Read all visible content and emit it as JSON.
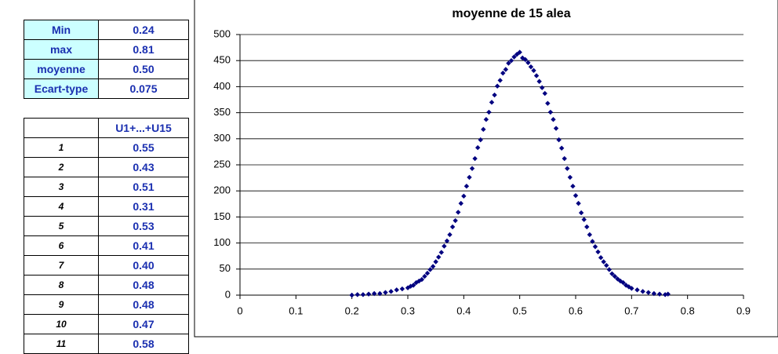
{
  "stats_table": {
    "rows": [
      [
        "Min",
        "0.24"
      ],
      [
        "max",
        "0.81"
      ],
      [
        "moyenne",
        "0.50"
      ],
      [
        "Ecart-type",
        "0.075"
      ]
    ]
  },
  "data_table": {
    "header": "U1+...+U15",
    "rows": [
      [
        "1",
        "0.55"
      ],
      [
        "2",
        "0.43"
      ],
      [
        "3",
        "0.51"
      ],
      [
        "4",
        "0.31"
      ],
      [
        "5",
        "0.53"
      ],
      [
        "6",
        "0.41"
      ],
      [
        "7",
        "0.40"
      ],
      [
        "8",
        "0.48"
      ],
      [
        "9",
        "0.48"
      ],
      [
        "10",
        "0.47"
      ],
      [
        "11",
        "0.58"
      ]
    ]
  },
  "chart_data": {
    "type": "scatter",
    "title": "moyenne de 15 alea",
    "xlim": [
      0,
      0.9
    ],
    "xticks": [
      0,
      0.1,
      0.2,
      0.3,
      0.4,
      0.5,
      0.6,
      0.7,
      0.8,
      0.9
    ],
    "ylim": [
      0,
      500
    ],
    "yticks": [
      0,
      50,
      100,
      150,
      200,
      250,
      300,
      350,
      400,
      450,
      500
    ],
    "grid": true,
    "series": [
      {
        "color": "#000080",
        "x": [
          0.2,
          0.21,
          0.22,
          0.23,
          0.24,
          0.25,
          0.26,
          0.27,
          0.28,
          0.29,
          0.3,
          0.305,
          0.31,
          0.315,
          0.32,
          0.325,
          0.33,
          0.335,
          0.34,
          0.345,
          0.35,
          0.355,
          0.36,
          0.365,
          0.37,
          0.375,
          0.38,
          0.385,
          0.39,
          0.395,
          0.4,
          0.405,
          0.41,
          0.415,
          0.42,
          0.425,
          0.43,
          0.435,
          0.44,
          0.445,
          0.45,
          0.455,
          0.46,
          0.465,
          0.47,
          0.475,
          0.48,
          0.485,
          0.49,
          0.495,
          0.5,
          0.505,
          0.51,
          0.515,
          0.52,
          0.525,
          0.53,
          0.535,
          0.54,
          0.545,
          0.55,
          0.555,
          0.56,
          0.565,
          0.57,
          0.575,
          0.58,
          0.585,
          0.59,
          0.595,
          0.6,
          0.605,
          0.61,
          0.615,
          0.62,
          0.625,
          0.63,
          0.635,
          0.64,
          0.645,
          0.65,
          0.655,
          0.66,
          0.665,
          0.67,
          0.675,
          0.68,
          0.685,
          0.69,
          0.695,
          0.7,
          0.71,
          0.72,
          0.73,
          0.74,
          0.75,
          0.76,
          0.765
        ],
        "values": [
          0,
          1,
          1,
          2,
          3,
          3,
          5,
          7,
          10,
          12,
          14,
          17,
          19,
          24,
          27,
          30,
          36,
          42,
          49,
          55,
          64,
          73,
          82,
          94,
          104,
          116,
          131,
          143,
          159,
          176,
          190,
          209,
          226,
          243,
          262,
          283,
          298,
          318,
          337,
          351,
          370,
          384,
          401,
          412,
          426,
          433,
          445,
          450,
          457,
          462,
          466,
          455,
          452,
          446,
          438,
          431,
          421,
          410,
          398,
          387,
          368,
          351,
          337,
          320,
          298,
          282,
          262,
          243,
          226,
          209,
          191,
          176,
          158,
          145,
          131,
          116,
          103,
          93,
          83,
          72,
          64,
          57,
          49,
          41,
          36,
          31,
          27,
          24,
          19,
          16,
          13,
          10,
          7,
          5,
          3,
          2,
          1,
          2
        ]
      }
    ]
  }
}
